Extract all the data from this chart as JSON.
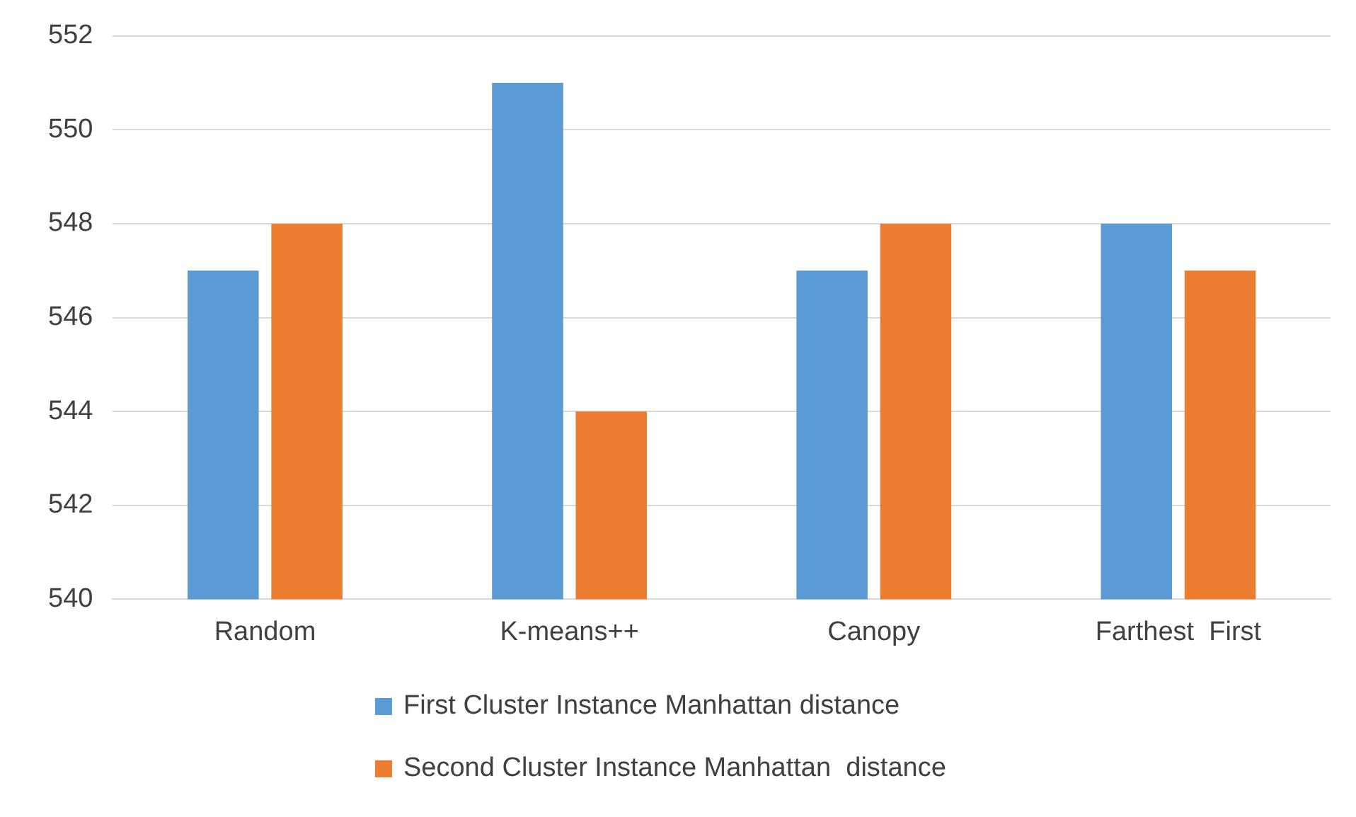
{
  "chart_data": {
    "type": "bar",
    "categories": [
      "Random",
      "K-means++",
      "Canopy",
      "Farthest  First"
    ],
    "series": [
      {
        "name": "First Cluster Instance Manhattan distance",
        "color": "#5b9bd5",
        "values": [
          547,
          551,
          547,
          548
        ]
      },
      {
        "name": "Second Cluster Instance Manhattan  distance",
        "color": "#ed7d31",
        "values": [
          548,
          544,
          548,
          547
        ]
      }
    ],
    "ylim": [
      540,
      552
    ],
    "yticks": [
      540,
      542,
      544,
      546,
      548,
      550,
      552
    ],
    "grid": "y",
    "legend": "bottom"
  }
}
